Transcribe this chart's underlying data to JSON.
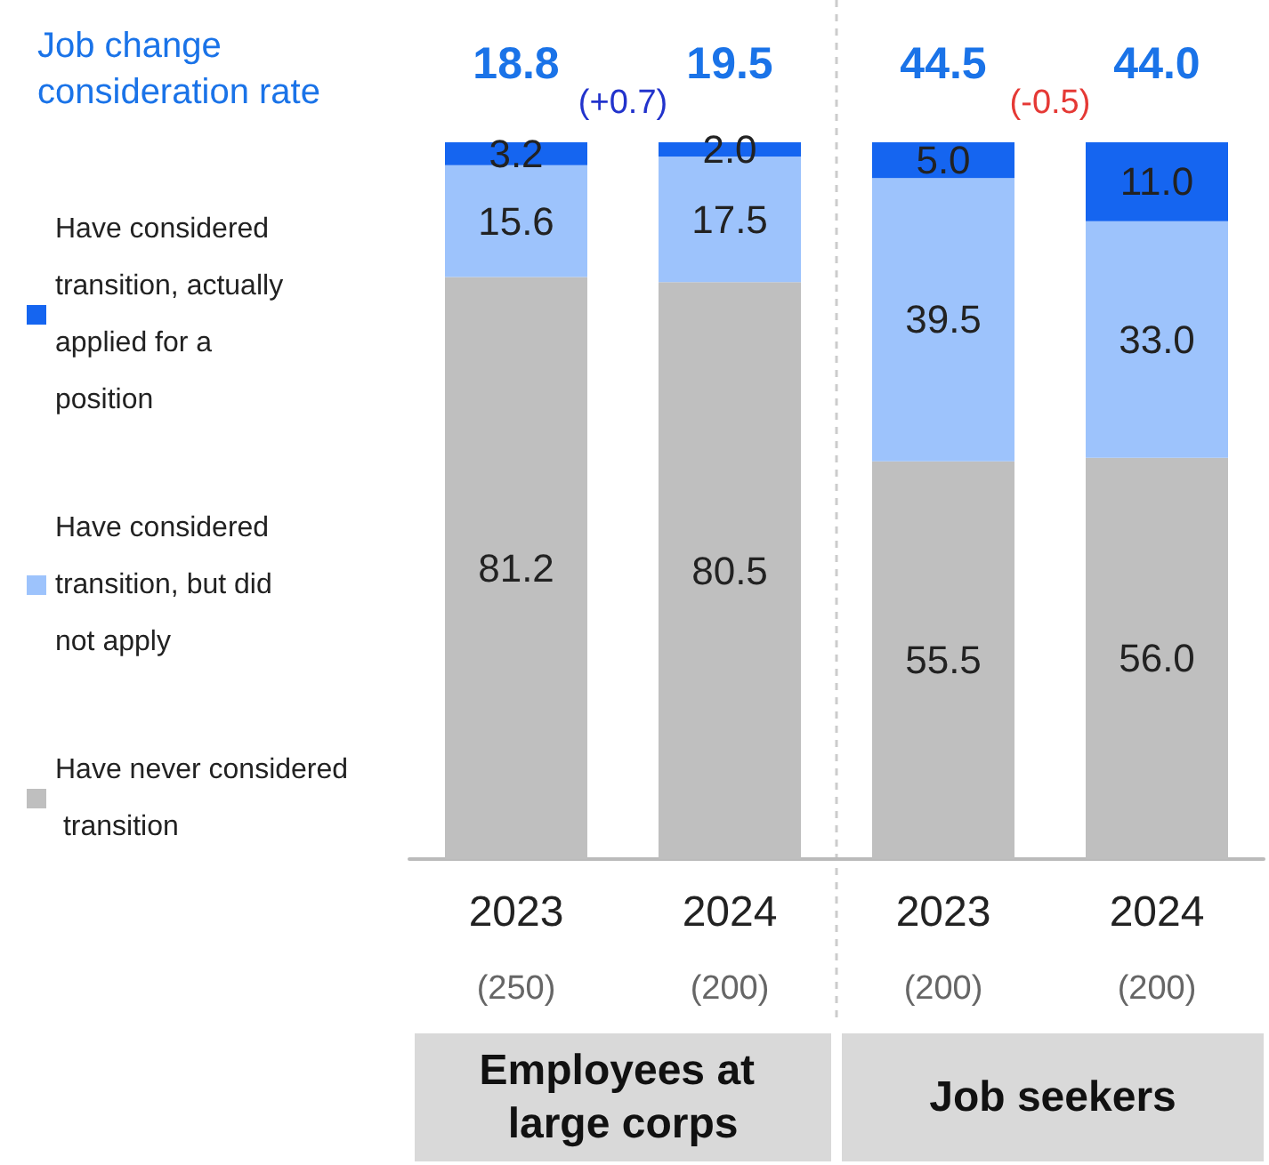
{
  "chart_data": {
    "type": "bar",
    "stacked": true,
    "legend": "left",
    "title": "Job change consideration rate",
    "categories": [
      "2023",
      "2024",
      "2023",
      "2024"
    ],
    "series": [
      {
        "name": "Have never considered transition",
        "color": "#bfbfbf",
        "values": [
          81.2,
          80.5,
          55.5,
          56.0
        ],
        "value_labels": [
          "81.2",
          "80.5",
          "55.5",
          "56.0"
        ]
      },
      {
        "name": "Have considered transition, but did not apply",
        "color": "#9dc3fc",
        "values": [
          15.6,
          17.5,
          39.5,
          33.0
        ],
        "value_labels": [
          "15.6",
          "17.5",
          "39.5",
          "33.0"
        ]
      },
      {
        "name": "Have considered transition, actually applied for a position",
        "color": "#1565f0",
        "values": [
          3.2,
          2.0,
          5.0,
          11.0
        ],
        "value_labels": [
          "3.2",
          "2.0",
          "5.0",
          "11.0"
        ]
      }
    ],
    "annotations": [
      "18.8",
      "19.5",
      "44.5",
      "44.0",
      "(+0.7)",
      "(-0.5)",
      "(250)",
      "(200)",
      "(200)",
      "(200)",
      "Employees at large corps",
      "Job seekers"
    ]
  }
}
